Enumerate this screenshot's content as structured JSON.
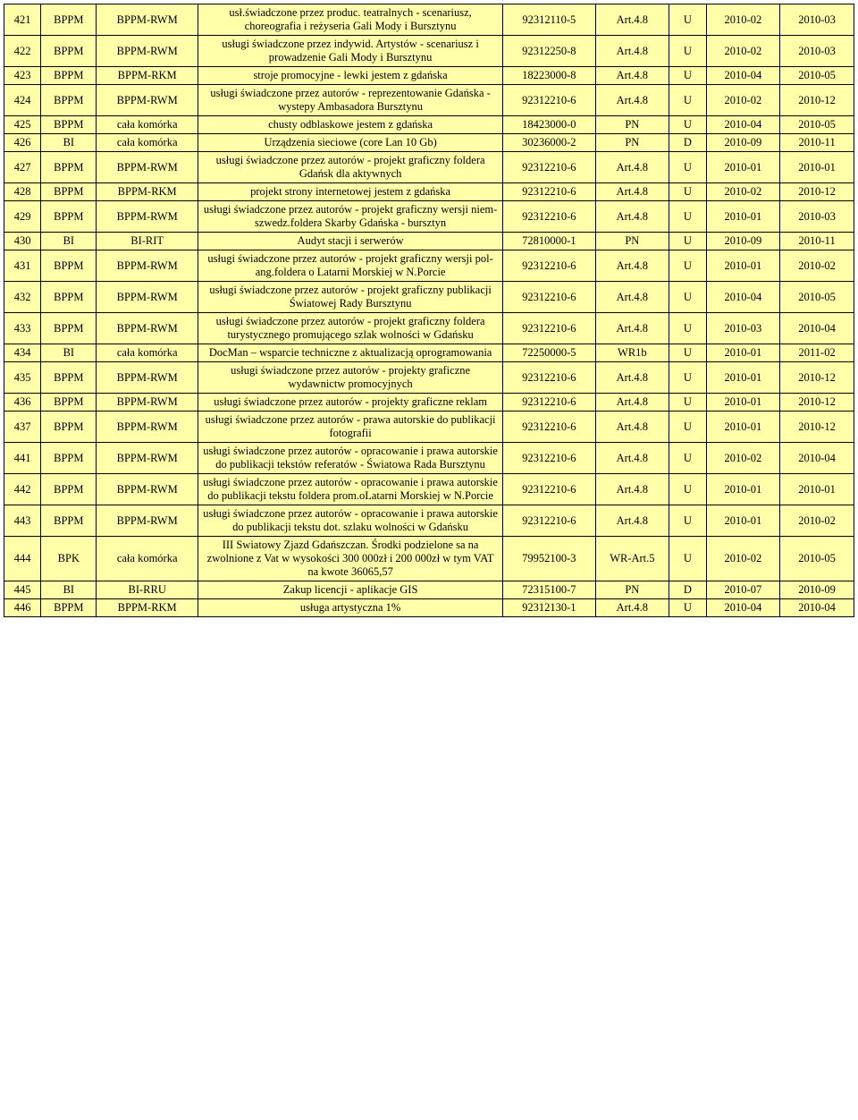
{
  "table": {
    "columns": [
      "id",
      "unit1",
      "unit2",
      "description",
      "code",
      "art",
      "flag",
      "date1",
      "date2"
    ],
    "col_align": [
      "center",
      "center",
      "center",
      "center",
      "center",
      "center",
      "center",
      "center",
      "center"
    ],
    "background_color": "#ffffa9",
    "border_color": "#000000",
    "font_family": "Times New Roman",
    "font_size_pt": 10,
    "rows": [
      {
        "id": "421",
        "unit1": "BPPM",
        "unit2": "BPPM-RWM",
        "description": "usł.świadczone przez produc. teatralnych - scenariusz, choreografia i reżyseria Gali Mody i Bursztynu",
        "code": "92312110-5",
        "art": "Art.4.8",
        "flag": "U",
        "date1": "2010-02",
        "date2": "2010-03"
      },
      {
        "id": "422",
        "unit1": "BPPM",
        "unit2": "BPPM-RWM",
        "description": "usługi świadczone przez indywid. Artystów - scenariusz i prowadzenie Gali Mody i Bursztynu",
        "code": "92312250-8",
        "art": "Art.4.8",
        "flag": "U",
        "date1": "2010-02",
        "date2": "2010-03"
      },
      {
        "id": "423",
        "unit1": "BPPM",
        "unit2": "BPPM-RKM",
        "description": "stroje promocyjne - lewki jestem z gdańska",
        "code": "18223000-8",
        "art": "Art.4.8",
        "flag": "U",
        "date1": "2010-04",
        "date2": "2010-05"
      },
      {
        "id": "424",
        "unit1": "BPPM",
        "unit2": "BPPM-RWM",
        "description": "usługi świadczone przez autorów - reprezentowanie Gdańska - wystepy Ambasadora Bursztynu",
        "code": "92312210-6",
        "art": "Art.4.8",
        "flag": "U",
        "date1": "2010-02",
        "date2": "2010-12"
      },
      {
        "id": "425",
        "unit1": "BPPM",
        "unit2": "cała komórka",
        "description": "chusty odblaskowe jestem z gdańska",
        "code": "18423000-0",
        "art": "PN",
        "flag": "U",
        "date1": "2010-04",
        "date2": "2010-05"
      },
      {
        "id": "426",
        "unit1": "BI",
        "unit2": "cała komórka",
        "description": "Urządzenia sieciowe (core Lan 10 Gb)",
        "code": "30236000-2",
        "art": "PN",
        "flag": "D",
        "date1": "2010-09",
        "date2": "2010-11"
      },
      {
        "id": "427",
        "unit1": "BPPM",
        "unit2": "BPPM-RWM",
        "description": "usługi świadczone przez autorów - projekt graficzny foldera Gdańsk dla aktywnych",
        "code": "92312210-6",
        "art": "Art.4.8",
        "flag": "U",
        "date1": "2010-01",
        "date2": "2010-01"
      },
      {
        "id": "428",
        "unit1": "BPPM",
        "unit2": "BPPM-RKM",
        "description": "projekt strony internetowej jestem z gdańska",
        "code": "92312210-6",
        "art": "Art.4.8",
        "flag": "U",
        "date1": "2010-02",
        "date2": "2010-12"
      },
      {
        "id": "429",
        "unit1": "BPPM",
        "unit2": "BPPM-RWM",
        "description": "usługi świadczone przez autorów - projekt graficzny wersji niem-szwedz.foldera Skarby Gdańska - bursztyn",
        "code": "92312210-6",
        "art": "Art.4.8",
        "flag": "U",
        "date1": "2010-01",
        "date2": "2010-03"
      },
      {
        "id": "430",
        "unit1": "BI",
        "unit2": "BI-RIT",
        "description": "Audyt stacji i serwerów",
        "code": "72810000-1",
        "art": "PN",
        "flag": "U",
        "date1": "2010-09",
        "date2": "2010-11"
      },
      {
        "id": "431",
        "unit1": "BPPM",
        "unit2": "BPPM-RWM",
        "description": "usługi świadczone przez autorów - projekt graficzny wersji pol-ang.foldera o Latarni Morskiej w N.Porcie",
        "code": "92312210-6",
        "art": "Art.4.8",
        "flag": "U",
        "date1": "2010-01",
        "date2": "2010-02"
      },
      {
        "id": "432",
        "unit1": "BPPM",
        "unit2": "BPPM-RWM",
        "description": "usługi świadczone przez autorów - projekt graficzny publikacji Światowej Rady Bursztynu",
        "code": "92312210-6",
        "art": "Art.4.8",
        "flag": "U",
        "date1": "2010-04",
        "date2": "2010-05"
      },
      {
        "id": "433",
        "unit1": "BPPM",
        "unit2": "BPPM-RWM",
        "description": "usługi świadczone przez autorów - projekt graficzny foldera turystycznego promującego szlak wolności w Gdańsku",
        "code": "92312210-6",
        "art": "Art.4.8",
        "flag": "U",
        "date1": "2010-03",
        "date2": "2010-04"
      },
      {
        "id": "434",
        "unit1": "BI",
        "unit2": "cała komórka",
        "description": "DocMan – wsparcie techniczne z aktualizacją oprogramowania",
        "code": "72250000-5",
        "art": "WR1b",
        "flag": "U",
        "date1": "2010-01",
        "date2": "2011-02"
      },
      {
        "id": "435",
        "unit1": "BPPM",
        "unit2": "BPPM-RWM",
        "description": "usługi świadczone przez autorów - projekty graficzne wydawnictw promocyjnych",
        "code": "92312210-6",
        "art": "Art.4.8",
        "flag": "U",
        "date1": "2010-01",
        "date2": "2010-12"
      },
      {
        "id": "436",
        "unit1": "BPPM",
        "unit2": "BPPM-RWM",
        "description": "usługi świadczone przez autorów - projekty graficzne reklam",
        "code": "92312210-6",
        "art": "Art.4.8",
        "flag": "U",
        "date1": "2010-01",
        "date2": "2010-12"
      },
      {
        "id": "437",
        "unit1": "BPPM",
        "unit2": "BPPM-RWM",
        "description": "usługi świadczone przez autorów - prawa autorskie do publikacji fotografii",
        "code": "92312210-6",
        "art": "Art.4.8",
        "flag": "U",
        "date1": "2010-01",
        "date2": "2010-12"
      },
      {
        "id": "441",
        "unit1": "BPPM",
        "unit2": "BPPM-RWM",
        "description": "usługi świadczone przez autorów - opracowanie i prawa autorskie do publikacji tekstów referatów - Światowa Rada Bursztynu",
        "code": "92312210-6",
        "art": "Art.4.8",
        "flag": "U",
        "date1": "2010-02",
        "date2": "2010-04"
      },
      {
        "id": "442",
        "unit1": "BPPM",
        "unit2": "BPPM-RWM",
        "description": "usługi świadczone przez autorów - opracowanie i prawa autorskie do publikacji tekstu foldera prom.oLatarni Morskiej w N.Porcie",
        "code": "92312210-6",
        "art": "Art.4.8",
        "flag": "U",
        "date1": "2010-01",
        "date2": "2010-01"
      },
      {
        "id": "443",
        "unit1": "BPPM",
        "unit2": "BPPM-RWM",
        "description": "usługi świadczone przez autorów - opracowanie i prawa autorskie do publikacji tekstu dot. szlaku wolności w Gdańsku",
        "code": "92312210-6",
        "art": "Art.4.8",
        "flag": "U",
        "date1": "2010-01",
        "date2": "2010-02"
      },
      {
        "id": "444",
        "unit1": "BPK",
        "unit2": "cała komórka",
        "description": "III Swiatowy Zjazd Gdańszczan. Środki podzielone sa na zwolnione z Vat w wysokości 300 000zł i 200 000zł w tym VAT na kwote 36065,57",
        "code": "79952100-3",
        "art": "WR-Art.5",
        "flag": "U",
        "date1": "2010-02",
        "date2": "2010-05"
      },
      {
        "id": "445",
        "unit1": "BI",
        "unit2": "BI-RRU",
        "description": "Zakup licencji - aplikacje GIS",
        "code": "72315100-7",
        "art": "PN",
        "flag": "D",
        "date1": "2010-07",
        "date2": "2010-09"
      },
      {
        "id": "446",
        "unit1": "BPPM",
        "unit2": "BPPM-RKM",
        "description": "usługa artystyczna 1%",
        "code": "92312130-1",
        "art": "Art.4.8",
        "flag": "U",
        "date1": "2010-04",
        "date2": "2010-04"
      }
    ]
  }
}
